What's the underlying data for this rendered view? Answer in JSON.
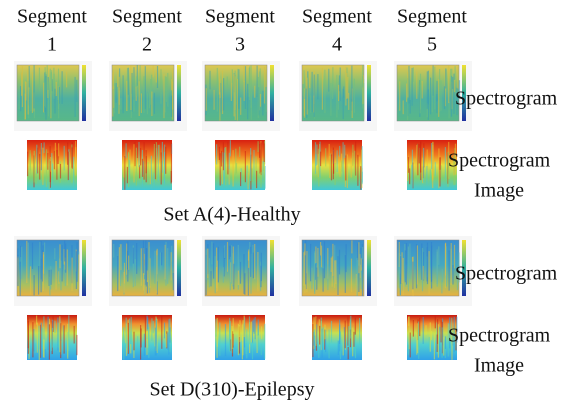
{
  "columns": [
    {
      "title": "Segment",
      "number": "1"
    },
    {
      "title": "Segment",
      "number": "2"
    },
    {
      "title": "Segment",
      "number": "3"
    },
    {
      "title": "Segment",
      "number": "4"
    },
    {
      "title": "Segment",
      "number": "5"
    }
  ],
  "sets": [
    {
      "caption": "Set A(4)-Healthy",
      "spectrogram_label": "Spectrogram",
      "image_label": [
        "Spectrogram",
        "Image"
      ]
    },
    {
      "caption": "Set D(310)-Epilepsy",
      "spectrogram_label": "Spectrogram",
      "image_label": [
        "Spectrogram",
        "Image"
      ]
    }
  ]
}
